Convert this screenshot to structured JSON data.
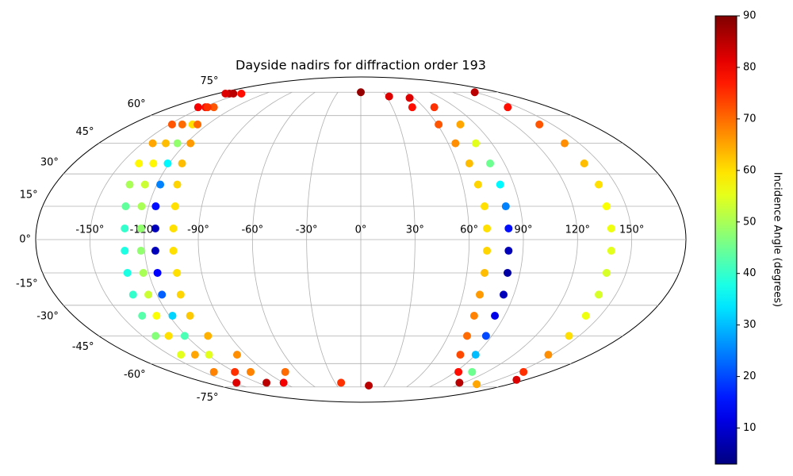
{
  "chart_data": {
    "type": "scatter",
    "projection": "mollweide",
    "title": "Dayside nadirs for diffraction order 193",
    "colorbar_label": "Incidence Angle (degrees)",
    "colormap": "jet",
    "clim": [
      3,
      90
    ],
    "cticks": [
      10,
      20,
      30,
      40,
      50,
      60,
      70,
      80,
      90
    ],
    "grid": true,
    "xlim": [
      -180,
      180
    ],
    "ylim": [
      -90,
      90
    ],
    "xticks": [
      {
        "value": -150,
        "label": "-150°"
      },
      {
        "value": -120,
        "label": "-120°"
      },
      {
        "value": -90,
        "label": "-90°"
      },
      {
        "value": -60,
        "label": "-60°"
      },
      {
        "value": -30,
        "label": "-30°"
      },
      {
        "value": 0,
        "label": "0°"
      },
      {
        "value": 30,
        "label": "30°"
      },
      {
        "value": 60,
        "label": "60°"
      },
      {
        "value": 90,
        "label": "90°"
      },
      {
        "value": 120,
        "label": "120°"
      },
      {
        "value": 150,
        "label": "150°"
      }
    ],
    "yticks": [
      {
        "value": -75,
        "label": "-75°"
      },
      {
        "value": -60,
        "label": "-60°"
      },
      {
        "value": -45,
        "label": "-45°"
      },
      {
        "value": -30,
        "label": "-30°"
      },
      {
        "value": -15,
        "label": "-15°"
      },
      {
        "value": 0,
        "label": "0°"
      },
      {
        "value": 15,
        "label": "15°"
      },
      {
        "value": 30,
        "label": "30°"
      },
      {
        "value": 45,
        "label": "45°"
      },
      {
        "value": 60,
        "label": "60°"
      },
      {
        "value": 75,
        "label": "75°"
      }
    ],
    "series": [
      {
        "x": [
          -165,
          -155,
          -148,
          -143,
          -139,
          -136,
          -133,
          -131,
          -131,
          -132,
          -134,
          -137,
          -141,
          -141,
          -140,
          -145
        ],
        "y": [
          74,
          65,
          55,
          45,
          35,
          25,
          15,
          5,
          -5,
          -15,
          -25,
          -35,
          -45,
          -55,
          -65,
          -72
        ],
        "values": [
          85,
          80,
          72,
          65,
          58,
          50,
          44,
          40,
          38,
          38,
          40,
          43,
          47,
          55,
          68,
          82
        ]
      },
      {
        "x": [
          -160,
          -148,
          -140,
          -134,
          -130,
          -127,
          -124,
          -122,
          -122,
          -123,
          -125,
          -128,
          -132,
          -130,
          -120,
          -110
        ],
        "y": [
          74,
          65,
          55,
          45,
          35,
          25,
          15,
          5,
          -5,
          -15,
          -25,
          -35,
          -45,
          -55,
          -65,
          -72
        ],
        "values": [
          85,
          78,
          70,
          63,
          58,
          53,
          50,
          48,
          48,
          50,
          53,
          57,
          60,
          65,
          75,
          85
        ]
      },
      {
        "x": [
          -150,
          -140,
          -132,
          -126,
          -121,
          -118,
          -116,
          -114,
          -114,
          -115,
          -117,
          -118,
          -121,
          -119,
          -105,
          -90
        ],
        "y": [
          74,
          65,
          55,
          45,
          35,
          25,
          15,
          5,
          -5,
          -15,
          -25,
          -35,
          -45,
          -55,
          -65,
          -72
        ],
        "values": [
          78,
          72,
          60,
          48,
          35,
          25,
          15,
          8,
          8,
          14,
          22,
          32,
          42,
          55,
          68,
          80
        ]
      },
      {
        "x": [
          -170,
          -146,
          -128,
          -117,
          -112,
          -108,
          -105,
          -104,
          -104,
          -104,
          -106,
          -107,
          -105,
          -97,
          -72,
          -23,
          10
        ],
        "y": [
          74,
          65,
          55,
          45,
          35,
          25,
          15,
          5,
          -5,
          -15,
          -25,
          -35,
          -45,
          -55,
          -65,
          -72,
          -74
        ],
        "values": [
          82,
          75,
          70,
          66,
          63,
          61,
          60,
          60,
          60,
          60,
          61,
          62,
          64,
          67,
          70,
          75,
          85
        ]
      },
      {
        "x": [
          0,
          33,
          49,
          61,
          65,
          68,
          69,
          70,
          70,
          70,
          70,
          70,
          71,
          73,
          78,
          93,
          115
        ],
        "y": [
          75,
          72,
          65,
          55,
          45,
          35,
          25,
          15,
          5,
          -5,
          -15,
          -25,
          -35,
          -45,
          -55,
          -65,
          -72
        ],
        "values": [
          88,
          82,
          78,
          72,
          67,
          63,
          61,
          60,
          60,
          61,
          63,
          66,
          68,
          70,
          73,
          78,
          85
        ]
      },
      {
        "x": [
          55,
          70,
          78,
          79,
          81,
          82,
          82,
          82,
          82,
          83,
          84,
          84,
          86,
          90,
          106,
          140
        ],
        "y": [
          71,
          65,
          55,
          45,
          35,
          25,
          15,
          5,
          -5,
          -15,
          -25,
          -35,
          -45,
          -55,
          -65,
          -73
        ],
        "values": [
          82,
          75,
          65,
          55,
          45,
          35,
          25,
          15,
          8,
          6,
          8,
          12,
          20,
          30,
          45,
          65
        ]
      },
      {
        "x": [
          149,
          140,
          140,
          140,
          140,
          140,
          139,
          139,
          139,
          139,
          140,
          141,
          143,
          147,
          155,
          170
        ],
        "y": [
          75,
          65,
          55,
          45,
          35,
          25,
          15,
          5,
          -5,
          -15,
          -25,
          -35,
          -45,
          -55,
          -65,
          -70
        ],
        "values": [
          85,
          78,
          72,
          67,
          63,
          60,
          57,
          56,
          55,
          54,
          54,
          56,
          60,
          67,
          75,
          82
        ]
      }
    ]
  }
}
